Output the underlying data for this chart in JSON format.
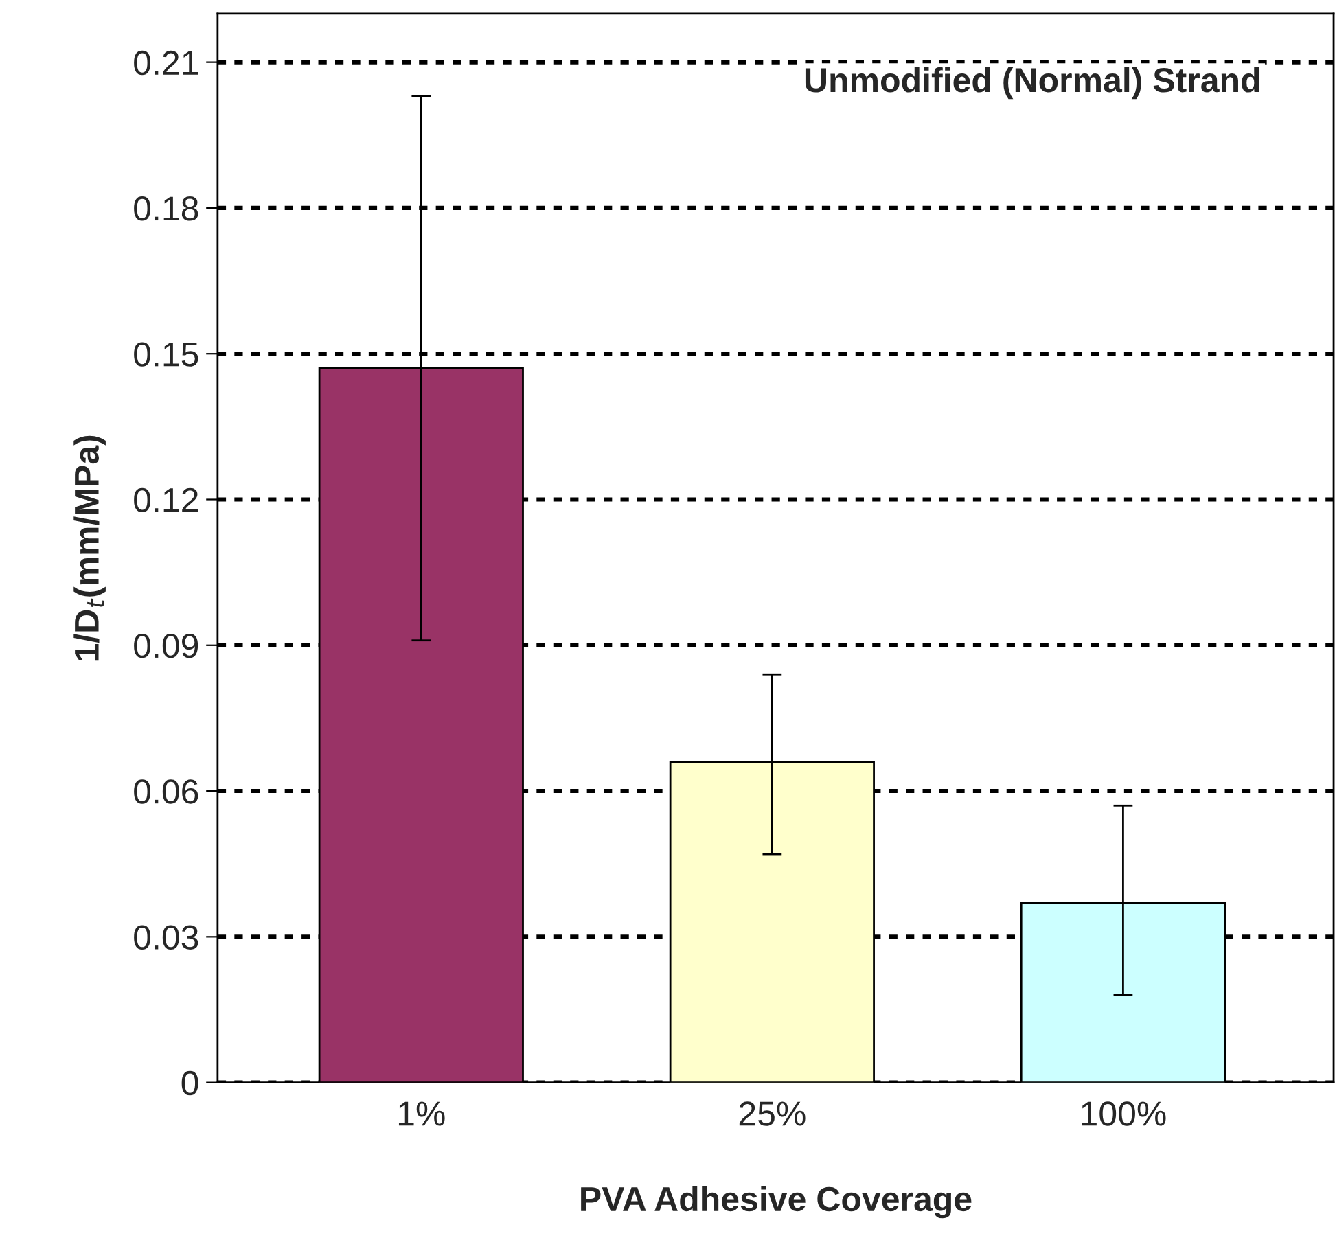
{
  "chart_data": {
    "type": "bar",
    "xlabel": "PVA Adhesive Coverage",
    "ylabel": "1/D$_{t}$(mm/MPa)",
    "categories": [
      "1%",
      "25%",
      "100%"
    ],
    "values": [
      0.147,
      0.066,
      0.037
    ],
    "colors": [
      "#993366",
      "#ffffcc",
      "#ccffff"
    ],
    "errors": [
      [
        0.091,
        0.203
      ],
      [
        0.047,
        0.084
      ],
      [
        0.018,
        0.057
      ]
    ],
    "ylim": [
      0,
      0.22
    ],
    "yticks": [
      {
        "value": 0,
        "label": "0"
      },
      0.03,
      0.06,
      0.09,
      0.12,
      0.15,
      0.18,
      0.21
    ],
    "grid": "y",
    "annotations": [
      "Unmodified (Normal) Strand"
    ]
  }
}
